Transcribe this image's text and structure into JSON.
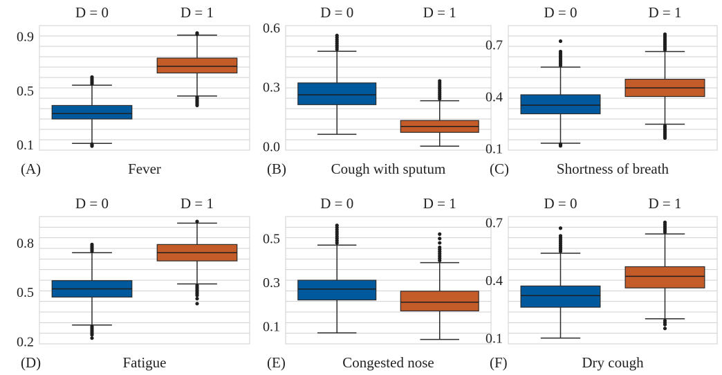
{
  "colors": {
    "d0": "#00599c",
    "d1": "#c45c2a"
  },
  "chart_data": [
    {
      "type": "box",
      "panel_label": "(A)",
      "title": "Fever",
      "categories": [
        "D = 0",
        "D = 1"
      ],
      "ylim": [
        0.06,
        0.98
      ],
      "yticks": [
        0.1,
        0.5,
        0.9
      ],
      "grid": true,
      "boxes": [
        {
          "name": "D = 0",
          "whisker_low": 0.11,
          "q1": 0.29,
          "median": 0.33,
          "q3": 0.39,
          "whisker_high": 0.54,
          "outliers_low": [
            0.09,
            0.095,
            0.1,
            0.105
          ],
          "outliers_high": [
            0.55,
            0.56,
            0.57,
            0.58,
            0.59,
            0.6
          ]
        },
        {
          "name": "D = 1",
          "whisker_low": 0.46,
          "q1": 0.63,
          "median": 0.68,
          "q3": 0.74,
          "whisker_high": 0.91,
          "outliers_low": [
            0.39,
            0.4,
            0.41,
            0.42,
            0.43,
            0.44,
            0.45
          ],
          "outliers_high": [
            0.915,
            0.92,
            0.925
          ]
        }
      ]
    },
    {
      "type": "box",
      "panel_label": "(B)",
      "title": "Cough with sputum",
      "categories": [
        "D = 0",
        "D = 1"
      ],
      "ylim": [
        -0.02,
        0.61
      ],
      "yticks": [
        0.0,
        0.3,
        0.6
      ],
      "tick_labels": [
        "0.0",
        "0.3",
        "0.6"
      ],
      "grid": true,
      "boxes": [
        {
          "name": "D = 0",
          "whisker_low": 0.06,
          "q1": 0.21,
          "median": 0.26,
          "q3": 0.32,
          "whisker_high": 0.48,
          "outliers_low": [],
          "outliers_high": [
            0.49,
            0.5,
            0.51,
            0.52,
            0.53,
            0.54,
            0.55,
            0.56
          ]
        },
        {
          "name": "D = 1",
          "whisker_low": 0.0,
          "q1": 0.07,
          "median": 0.1,
          "q3": 0.13,
          "whisker_high": 0.23,
          "outliers_low": [],
          "outliers_high": [
            0.24,
            0.25,
            0.26,
            0.27,
            0.28,
            0.29,
            0.3,
            0.31,
            0.32,
            0.33
          ]
        }
      ]
    },
    {
      "type": "box",
      "panel_label": "(C)",
      "title": "Shortness of breath",
      "categories": [
        "D = 0",
        "D = 1"
      ],
      "ylim": [
        0.09,
        0.81
      ],
      "yticks": [
        0.1,
        0.4,
        0.7
      ],
      "grid": true,
      "boxes": [
        {
          "name": "D = 0",
          "whisker_low": 0.13,
          "q1": 0.3,
          "median": 0.35,
          "q3": 0.41,
          "whisker_high": 0.57,
          "outliers_low": [
            0.115,
            0.12,
            0.125
          ],
          "outliers_high": [
            0.58,
            0.59,
            0.6,
            0.61,
            0.62,
            0.63,
            0.64,
            0.65,
            0.66,
            0.72
          ]
        },
        {
          "name": "D = 1",
          "whisker_low": 0.24,
          "q1": 0.4,
          "median": 0.45,
          "q3": 0.5,
          "whisker_high": 0.66,
          "outliers_low": [
            0.16,
            0.17,
            0.18,
            0.19,
            0.2,
            0.21,
            0.22,
            0.23
          ],
          "outliers_high": [
            0.67,
            0.68,
            0.69,
            0.7,
            0.71,
            0.72,
            0.73,
            0.74,
            0.75,
            0.76
          ]
        }
      ]
    },
    {
      "type": "box",
      "panel_label": "(D)",
      "title": "Fatigue",
      "categories": [
        "D = 0",
        "D = 1"
      ],
      "ylim": [
        0.185,
        0.96
      ],
      "yticks": [
        0.2,
        0.5,
        0.8
      ],
      "grid": true,
      "boxes": [
        {
          "name": "D = 0",
          "whisker_low": 0.3,
          "q1": 0.47,
          "median": 0.52,
          "q3": 0.57,
          "whisker_high": 0.74,
          "outliers_low": [
            0.22,
            0.24,
            0.25,
            0.26,
            0.27,
            0.28,
            0.29
          ],
          "outliers_high": [
            0.75,
            0.76,
            0.77,
            0.78,
            0.79
          ]
        },
        {
          "name": "D = 1",
          "whisker_low": 0.55,
          "q1": 0.69,
          "median": 0.74,
          "q3": 0.79,
          "whisker_high": 0.92,
          "outliers_low": [
            0.43,
            0.46,
            0.48,
            0.49,
            0.5,
            0.51,
            0.52,
            0.53,
            0.54
          ],
          "outliers_high": [
            0.93
          ]
        }
      ]
    },
    {
      "type": "box",
      "panel_label": "(E)",
      "title": "Congested nose",
      "categories": [
        "D = 0",
        "D = 1"
      ],
      "ylim": [
        0.02,
        0.6
      ],
      "yticks": [
        0.1,
        0.3,
        0.5
      ],
      "grid": true,
      "boxes": [
        {
          "name": "D = 0",
          "whisker_low": 0.07,
          "q1": 0.22,
          "median": 0.27,
          "q3": 0.31,
          "whisker_high": 0.47,
          "outliers_low": [],
          "outliers_high": [
            0.48,
            0.49,
            0.5,
            0.51,
            0.52,
            0.53,
            0.54,
            0.55,
            0.56
          ]
        },
        {
          "name": "D = 1",
          "whisker_low": 0.04,
          "q1": 0.17,
          "median": 0.21,
          "q3": 0.26,
          "whisker_high": 0.39,
          "outliers_low": [],
          "outliers_high": [
            0.4,
            0.41,
            0.42,
            0.43,
            0.44,
            0.45,
            0.46,
            0.48,
            0.5,
            0.52
          ]
        }
      ]
    },
    {
      "type": "box",
      "panel_label": "(F)",
      "title": "Dry cough",
      "categories": [
        "D = 0",
        "D = 1"
      ],
      "ylim": [
        0.07,
        0.73
      ],
      "yticks": [
        0.1,
        0.4,
        0.7
      ],
      "grid": true,
      "boxes": [
        {
          "name": "D = 0",
          "whisker_low": 0.1,
          "q1": 0.26,
          "median": 0.32,
          "q3": 0.37,
          "whisker_high": 0.54,
          "outliers_low": [],
          "outliers_high": [
            0.55,
            0.56,
            0.57,
            0.58,
            0.59,
            0.6,
            0.61,
            0.62,
            0.63,
            0.67
          ]
        },
        {
          "name": "D = 1",
          "whisker_low": 0.2,
          "q1": 0.36,
          "median": 0.42,
          "q3": 0.47,
          "whisker_high": 0.64,
          "outliers_low": [
            0.15,
            0.17,
            0.18,
            0.19
          ],
          "outliers_high": [
            0.65,
            0.66,
            0.67,
            0.68,
            0.69,
            0.7
          ]
        }
      ]
    }
  ]
}
